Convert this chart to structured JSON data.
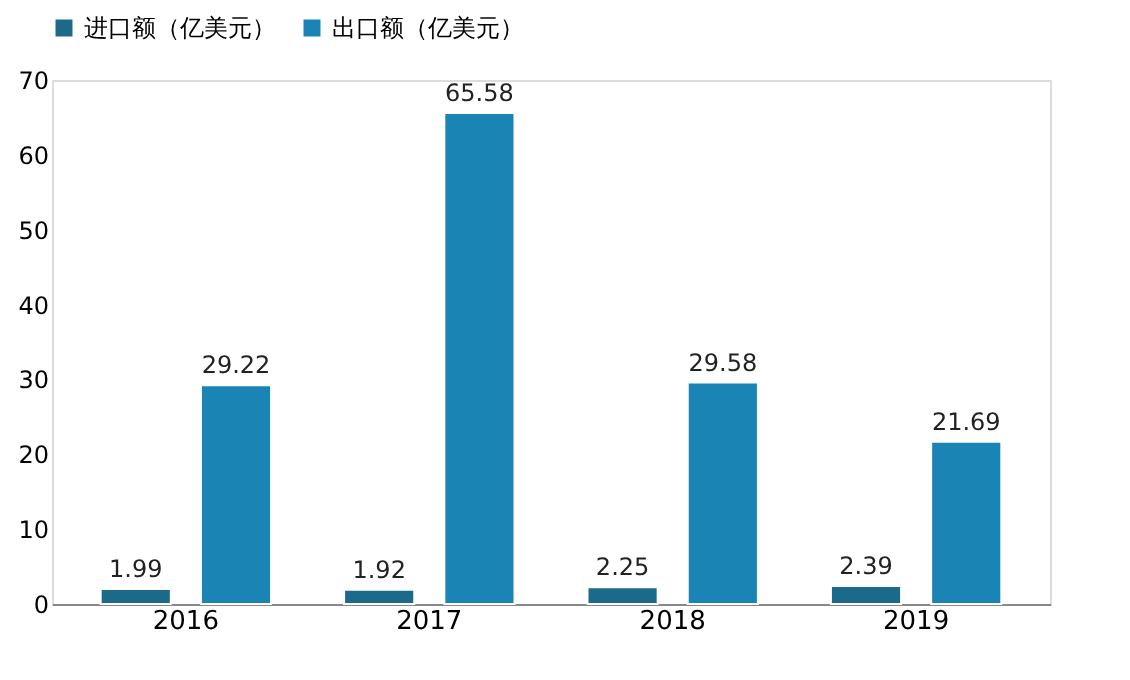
{
  "chart_data": {
    "type": "bar",
    "categories": [
      "2016",
      "2017",
      "2018",
      "2019"
    ],
    "series": [
      {
        "name": "进口额（亿美元）",
        "color": "#1b6a8a",
        "values": [
          1.99,
          1.92,
          2.25,
          2.39
        ]
      },
      {
        "name": "出口额（亿美元）",
        "color": "#1a84b4",
        "values": [
          29.22,
          65.58,
          29.58,
          21.69
        ]
      }
    ],
    "ylim": [
      0,
      70
    ],
    "yticks": [
      0,
      10,
      20,
      30,
      40,
      50,
      60,
      70
    ],
    "data_labels": true,
    "legend": "top",
    "grid": false
  }
}
